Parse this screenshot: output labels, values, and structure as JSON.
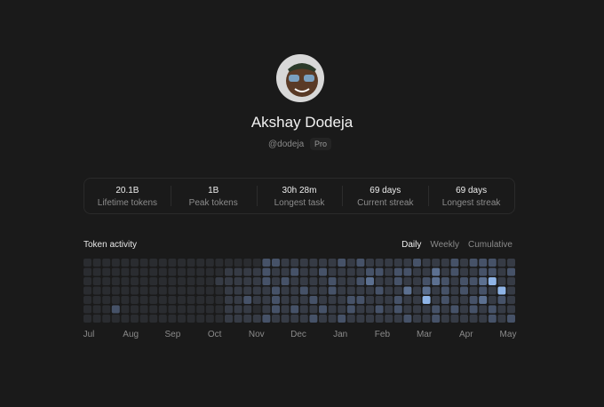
{
  "profile": {
    "name": "Akshay Dodeja",
    "handle": "@dodeja",
    "plan": "Pro"
  },
  "stats": [
    {
      "value": "20.1B",
      "label": "Lifetime tokens"
    },
    {
      "value": "1B",
      "label": "Peak tokens"
    },
    {
      "value": "30h 28m",
      "label": "Longest task"
    },
    {
      "value": "69 days",
      "label": "Current streak"
    },
    {
      "value": "69 days",
      "label": "Longest streak"
    }
  ],
  "activity": {
    "title": "Token activity",
    "tabs": [
      "Daily",
      "Weekly",
      "Cumulative"
    ],
    "active_tab": 0,
    "months": [
      "Jul",
      "Aug",
      "Sep",
      "Oct",
      "Nov",
      "Dec",
      "Jan",
      "Feb",
      "Mar",
      "Apr",
      "May"
    ],
    "colors": [
      "#2a2c30",
      "#363b45",
      "#465268",
      "#5c7090",
      "#8fb4e6"
    ],
    "levels": [
      [
        0,
        0,
        0,
        0,
        0,
        0,
        0,
        0,
        0,
        0,
        0,
        0,
        0,
        0,
        0,
        0,
        0,
        0,
        0,
        2,
        2,
        1,
        1,
        1,
        1,
        1,
        1,
        2,
        1,
        2,
        1,
        1,
        1,
        1,
        1,
        2,
        1,
        1,
        1,
        2,
        1,
        2,
        2,
        2,
        1,
        1
      ],
      [
        0,
        0,
        0,
        0,
        0,
        0,
        0,
        0,
        0,
        0,
        0,
        0,
        0,
        0,
        0,
        1,
        1,
        1,
        1,
        2,
        1,
        1,
        2,
        1,
        1,
        2,
        1,
        1,
        1,
        1,
        2,
        2,
        1,
        2,
        2,
        1,
        1,
        3,
        1,
        2,
        1,
        1,
        2,
        2,
        1,
        2
      ],
      [
        0,
        0,
        0,
        0,
        0,
        0,
        0,
        0,
        0,
        0,
        0,
        0,
        0,
        0,
        1,
        1,
        1,
        1,
        1,
        2,
        1,
        2,
        1,
        1,
        1,
        1,
        2,
        1,
        1,
        2,
        3,
        1,
        1,
        2,
        1,
        1,
        2,
        3,
        2,
        1,
        2,
        2,
        3,
        4,
        1,
        1
      ],
      [
        0,
        0,
        0,
        0,
        0,
        0,
        0,
        0,
        0,
        0,
        0,
        0,
        0,
        0,
        0,
        1,
        1,
        1,
        1,
        1,
        2,
        1,
        1,
        2,
        1,
        1,
        2,
        1,
        1,
        1,
        1,
        2,
        1,
        1,
        3,
        1,
        3,
        1,
        2,
        1,
        2,
        1,
        2,
        1,
        4,
        1
      ],
      [
        0,
        0,
        0,
        0,
        0,
        0,
        0,
        0,
        0,
        0,
        0,
        0,
        0,
        0,
        0,
        1,
        1,
        2,
        1,
        1,
        2,
        1,
        1,
        1,
        2,
        1,
        1,
        1,
        2,
        2,
        1,
        1,
        1,
        2,
        1,
        1,
        4,
        1,
        2,
        1,
        1,
        2,
        3,
        1,
        2,
        1
      ],
      [
        0,
        0,
        0,
        2,
        0,
        0,
        0,
        0,
        0,
        0,
        0,
        0,
        0,
        0,
        0,
        1,
        1,
        1,
        0,
        1,
        2,
        1,
        2,
        1,
        1,
        2,
        1,
        1,
        2,
        1,
        1,
        2,
        1,
        2,
        1,
        1,
        1,
        2,
        1,
        2,
        1,
        2,
        1,
        2,
        1,
        1
      ],
      [
        0,
        0,
        0,
        0,
        0,
        0,
        0,
        0,
        0,
        0,
        0,
        0,
        0,
        0,
        0,
        1,
        1,
        1,
        1,
        2,
        1,
        1,
        1,
        1,
        2,
        1,
        1,
        2,
        1,
        1,
        1,
        1,
        1,
        1,
        2,
        1,
        1,
        2,
        1,
        1,
        1,
        1,
        1,
        2,
        1,
        2
      ]
    ]
  }
}
